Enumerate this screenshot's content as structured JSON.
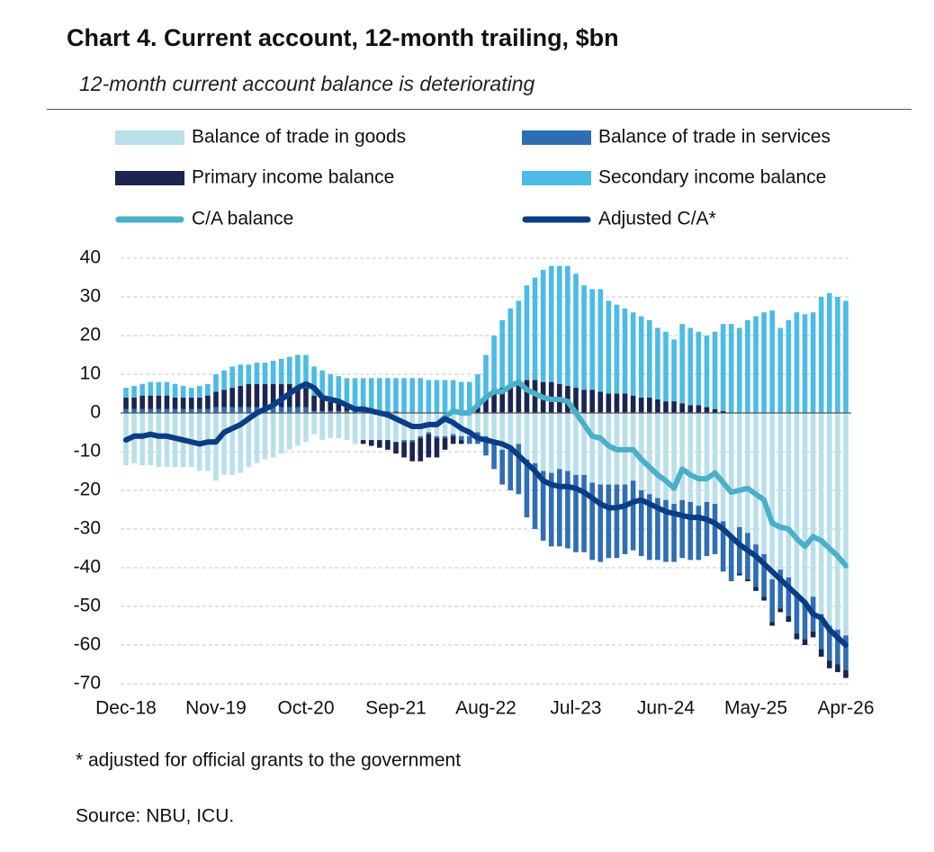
{
  "chart_data": {
    "type": "bar",
    "stacked": true,
    "title": "Chart 4. Current account, 12-month trailing, $bn",
    "subtitle": "12-month current account balance is deteriorating",
    "notes": [
      "* adjusted for official grants to the government",
      "Source: NBU, ICU."
    ],
    "legend": "top",
    "grid": true,
    "ylim": [
      -70,
      40
    ],
    "yticks": [
      -70,
      -60,
      -50,
      -40,
      -30,
      -20,
      -10,
      0,
      10,
      20,
      30,
      40
    ],
    "categories": [
      "Dec-18",
      null,
      null,
      null,
      null,
      null,
      null,
      null,
      null,
      null,
      null,
      "Nov-19",
      null,
      null,
      null,
      null,
      null,
      null,
      null,
      null,
      null,
      null,
      "Oct-20",
      null,
      null,
      null,
      null,
      null,
      null,
      null,
      null,
      null,
      null,
      "Sep-21",
      null,
      null,
      null,
      null,
      null,
      null,
      null,
      null,
      null,
      null,
      "Aug-22",
      null,
      null,
      null,
      null,
      null,
      null,
      null,
      null,
      null,
      null,
      "Jul-23",
      null,
      null,
      null,
      null,
      null,
      null,
      null,
      null,
      null,
      null,
      "Jun-24",
      null,
      null,
      null,
      null,
      null,
      null,
      null,
      null,
      null,
      null,
      "May-25",
      null,
      null,
      null,
      null,
      null,
      null,
      null,
      null,
      null,
      null,
      "Apr-26"
    ],
    "series": [
      {
        "name": "Balance of trade in goods",
        "type": "bar",
        "color": "#b9e0ea",
        "values": [
          -13.5,
          -13,
          -13.5,
          -13.5,
          -14,
          -14,
          -14,
          -14,
          -14,
          -15,
          -15,
          -17.5,
          -16,
          -16,
          -15.5,
          -14,
          -13,
          -12,
          -11.5,
          -10.5,
          -9.5,
          -8.5,
          -7.5,
          -5.5,
          -7,
          -6.5,
          -6.5,
          -7,
          -8,
          -7,
          -7,
          -7,
          -7,
          -7.5,
          -7,
          -7,
          -6,
          -5,
          -6,
          -6,
          -5.5,
          -6,
          -6,
          -5,
          -6,
          -7.5,
          -9.5,
          -9,
          -8,
          -12,
          -13,
          -15,
          -15.5,
          -14.5,
          -15,
          -16,
          -16,
          -18,
          -18.5,
          -18.5,
          -18.5,
          -18.5,
          -17.5,
          -20,
          -21,
          -22,
          -22.5,
          -23.5,
          -22.5,
          -23,
          -24,
          -23,
          -23.5,
          -28,
          -31.5,
          -29.5,
          -31,
          -34,
          -36.5,
          -43,
          -40.5,
          -42.5,
          -47,
          -48.5,
          -47.5,
          -52,
          -55,
          -56,
          -57.5
        ]
      },
      {
        "name": "Balance of trade in services",
        "type": "bar",
        "color": "#2f6db5",
        "values": [
          1,
          1,
          1,
          1,
          1,
          1,
          1,
          1,
          1,
          1,
          1,
          1.5,
          1.5,
          1.5,
          1.5,
          1.5,
          1.5,
          1.5,
          1.5,
          1.5,
          1.5,
          1.5,
          1.5,
          0.5,
          0.5,
          0.5,
          0.5,
          0.5,
          0.5,
          0.5,
          0.5,
          0.5,
          0.5,
          0.5,
          -0.5,
          -0.5,
          -0.5,
          -0.5,
          -0.5,
          -0.5,
          -0.5,
          -1,
          -2,
          -3,
          -5,
          -7,
          -9,
          -11,
          -13,
          -15,
          -17,
          -18,
          -19,
          -20,
          -20,
          -20,
          -20,
          -20,
          -20,
          -19,
          -19,
          -18,
          -18,
          -17,
          -17,
          -16,
          -16,
          -15,
          -15,
          -15,
          -14,
          -14,
          -13,
          -13,
          -12,
          -12,
          -12,
          -11,
          -11,
          -11,
          -10,
          -10,
          -10,
          -10,
          -9,
          -9,
          -9,
          -9,
          -9
        ]
      },
      {
        "name": "Primary income balance",
        "type": "bar",
        "color": "#1a2550",
        "values": [
          3,
          3,
          3.5,
          3.5,
          3.5,
          3.5,
          3,
          3,
          3,
          3,
          3.5,
          4,
          4.5,
          5,
          5.5,
          6,
          6,
          6,
          6,
          6,
          6,
          5.5,
          5,
          4,
          3.5,
          3,
          2.5,
          2,
          1,
          -1,
          -1.5,
          -2,
          -2.5,
          -3,
          -4,
          -5,
          -6,
          -6,
          -5,
          -3,
          -2,
          -1,
          0.5,
          2,
          4,
          5.5,
          6.5,
          7.5,
          8,
          8.5,
          8.5,
          8,
          8,
          7.5,
          7,
          6.5,
          6,
          6,
          5.5,
          5,
          5,
          5,
          4.5,
          4,
          4,
          3.5,
          3,
          3,
          2.5,
          2,
          2,
          1.5,
          1,
          0.5,
          0,
          -0.5,
          -0.5,
          -1,
          -1,
          -1,
          -1,
          -1.5,
          -1.5,
          -1.5,
          -1.5,
          -2,
          -2,
          -2,
          -2
        ]
      },
      {
        "name": "Secondary income balance",
        "type": "bar",
        "color": "#4cbbe6",
        "values": [
          2.5,
          3,
          3,
          3.5,
          3.5,
          3.5,
          3.5,
          3,
          2.5,
          3,
          3,
          4.5,
          5,
          5.5,
          5.5,
          5,
          5.5,
          5.5,
          6,
          6.5,
          7,
          8,
          8.5,
          7.5,
          7,
          6.5,
          6.5,
          6.5,
          7.5,
          8.5,
          8.5,
          8.5,
          8.5,
          8.5,
          9,
          9,
          9,
          8.5,
          8.5,
          8.5,
          8.5,
          8,
          7.5,
          8,
          11,
          14.5,
          17.5,
          19.5,
          21,
          24.5,
          26.5,
          29,
          30,
          30.5,
          31,
          29.5,
          27,
          26,
          26.5,
          24,
          23,
          22,
          21.5,
          21,
          20,
          18.5,
          18,
          16,
          20.5,
          20,
          19,
          18.5,
          20,
          22.5,
          23,
          22,
          24,
          25,
          26,
          26.5,
          22,
          24,
          26,
          25.5,
          26,
          30,
          31,
          30,
          29
        ]
      },
      {
        "name": "C/A balance",
        "type": "line",
        "color": "#4ab0c8",
        "values": [
          -7,
          -6,
          -6,
          -5.5,
          -6,
          -6,
          -6.5,
          -7,
          -7.5,
          -8,
          -7.5,
          -7.5,
          -5,
          -4,
          -3,
          -1.5,
          0,
          1,
          2,
          3.5,
          5,
          6.5,
          7.5,
          6.5,
          4,
          3.5,
          3,
          2,
          1,
          1,
          0.5,
          0,
          -0.5,
          -1.5,
          -2.5,
          -3.5,
          -3.5,
          -3,
          -3,
          -1,
          0.5,
          0,
          0,
          2,
          4,
          5.5,
          5.5,
          7,
          8,
          6,
          5,
          4,
          3.5,
          3.5,
          3,
          0,
          -3,
          -6,
          -6.5,
          -8.5,
          -9.5,
          -9.5,
          -9.5,
          -12,
          -14,
          -16,
          -17.5,
          -19.5,
          -14.5,
          -16,
          -17,
          -17,
          -15.5,
          -18,
          -20.5,
          -20,
          -19.5,
          -21,
          -22.5,
          -28.5,
          -29.5,
          -30,
          -32.5,
          -34.5,
          -32,
          -33,
          -35,
          -37,
          -39.5
        ]
      },
      {
        "name": "Adjusted C/A*",
        "type": "line",
        "color": "#0a3d85",
        "values": [
          -7,
          -6,
          -6,
          -5.5,
          -6,
          -6,
          -6.5,
          -7,
          -7.5,
          -8,
          -7.5,
          -7.5,
          -5,
          -4,
          -3,
          -1.5,
          0,
          1,
          2,
          3.5,
          5,
          6.5,
          7.5,
          6.5,
          4,
          3.5,
          3,
          2,
          1,
          1,
          0.5,
          0,
          -0.5,
          -1.5,
          -2.5,
          -3.5,
          -3.5,
          -3,
          -3,
          -1.5,
          -2.5,
          -4,
          -5,
          -6.5,
          -7,
          -7.5,
          -8,
          -9,
          -11,
          -13,
          -15,
          -17.5,
          -18.5,
          -19,
          -19,
          -19.5,
          -20.5,
          -22,
          -23.5,
          -24.5,
          -24.5,
          -24,
          -23,
          -22.5,
          -23.5,
          -24.5,
          -25.5,
          -26,
          -26.5,
          -27,
          -27,
          -27.5,
          -28.5,
          -30,
          -32,
          -34,
          -35.5,
          -37,
          -39,
          -41,
          -43,
          -45,
          -47,
          -49,
          -52,
          -53,
          -56,
          -58,
          -60
        ]
      }
    ]
  }
}
